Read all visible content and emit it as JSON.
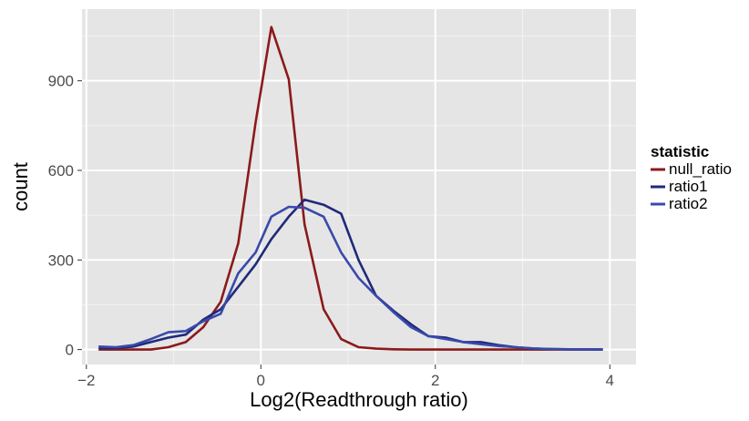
{
  "chart_data": {
    "type": "line",
    "xlabel": "Log2(Readthrough ratio)",
    "ylabel": "count",
    "xlim": [
      -2.05,
      4.3
    ],
    "ylim": [
      -50,
      1140
    ],
    "xticks": [
      -2,
      0,
      2,
      4
    ],
    "xtick_labels": [
      "−2",
      "0",
      "2",
      "4"
    ],
    "yticks": [
      0,
      300,
      600,
      900
    ],
    "ytick_labels": [
      "0",
      "300",
      "600",
      "900"
    ],
    "grid": true,
    "legend": {
      "title": "statistic",
      "placement": "right"
    },
    "series": [
      {
        "name": "null_ratio",
        "color": "#8b1a1a",
        "x": [
          -1.86,
          -1.66,
          -1.46,
          -1.26,
          -1.06,
          -0.86,
          -0.66,
          -0.46,
          -0.26,
          -0.06,
          0.12,
          0.32,
          0.5,
          0.72,
          0.92,
          1.12,
          1.32,
          1.52,
          1.72,
          1.92,
          2.12,
          2.32,
          2.52,
          2.72,
          2.92,
          3.12,
          3.32,
          3.52,
          3.72,
          3.92
        ],
        "values": [
          0,
          0,
          0,
          0,
          8,
          25,
          75,
          160,
          355,
          760,
          1080,
          905,
          420,
          135,
          35,
          8,
          3,
          1,
          0,
          0,
          0,
          0,
          0,
          0,
          0,
          0,
          0,
          0,
          0,
          0
        ]
      },
      {
        "name": "ratio1",
        "color": "#1f2a7a",
        "x": [
          -1.86,
          -1.66,
          -1.46,
          -1.26,
          -1.06,
          -0.86,
          -0.66,
          -0.46,
          -0.26,
          -0.06,
          0.12,
          0.32,
          0.5,
          0.72,
          0.92,
          1.12,
          1.32,
          1.52,
          1.72,
          1.92,
          2.12,
          2.32,
          2.52,
          2.72,
          2.92,
          3.12,
          3.32,
          3.52,
          3.72,
          3.92
        ],
        "values": [
          5,
          5,
          10,
          25,
          40,
          50,
          100,
          135,
          210,
          285,
          370,
          445,
          502,
          485,
          455,
          300,
          180,
          130,
          85,
          45,
          40,
          25,
          25,
          15,
          8,
          3,
          2,
          1,
          1,
          0
        ]
      },
      {
        "name": "ratio2",
        "color": "#3949ab",
        "x": [
          -1.86,
          -1.66,
          -1.46,
          -1.26,
          -1.06,
          -0.86,
          -0.66,
          -0.46,
          -0.26,
          -0.06,
          0.12,
          0.32,
          0.5,
          0.72,
          0.92,
          1.12,
          1.32,
          1.52,
          1.72,
          1.92,
          2.12,
          2.32,
          2.52,
          2.72,
          2.92,
          3.12,
          3.32,
          3.52,
          3.72,
          3.92
        ],
        "values": [
          10,
          8,
          15,
          35,
          58,
          62,
          95,
          120,
          255,
          325,
          445,
          478,
          475,
          445,
          325,
          240,
          180,
          125,
          75,
          45,
          35,
          25,
          18,
          12,
          8,
          4,
          2,
          1,
          1,
          0
        ]
      }
    ]
  }
}
